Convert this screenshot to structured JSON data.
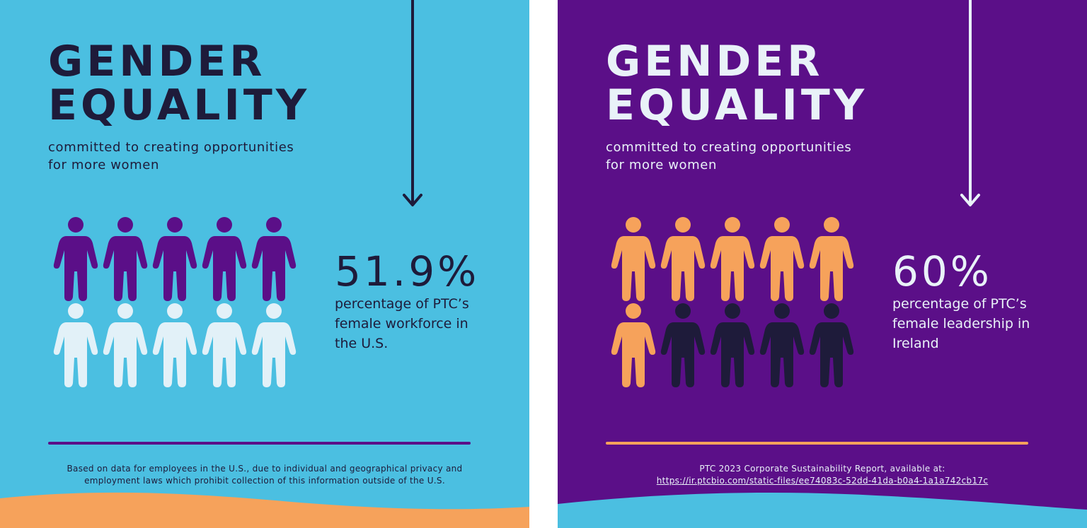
{
  "colors": {
    "sky_blue": "#4bbfe1",
    "purple": "#5b0f88",
    "orange": "#f6a25b",
    "navy": "#1e1b3a",
    "pale": "#e2f1f8"
  },
  "left_card": {
    "title_line1": "GENDER",
    "title_line2": "EQUALITY",
    "subtitle_line1": "committed to creating opportunities",
    "subtitle_line2": "for more women",
    "stat": "51.9%",
    "stat_desc_line1": "percentage of PTC’s",
    "stat_desc_line2": "female workforce in",
    "stat_desc_line3": "the U.S.",
    "footnote_line1": "Based on data for employees in the U.S., due to individual and geographical privacy and",
    "footnote_line2": "employment laws which prohibit collection of this information outside of the U.S.",
    "figure_value": 0.5,
    "figures_highlighted": 5,
    "figures_total": 10
  },
  "right_card": {
    "title_line1": "GENDER",
    "title_line2": "EQUALITY",
    "subtitle_line1": "committed to creating opportunities",
    "subtitle_line2": "for more women",
    "stat": "60%",
    "stat_desc_line1": "percentage of PTC’s",
    "stat_desc_line2": "female leadership in",
    "stat_desc_line3": "Ireland",
    "footnote_line1": "PTC 2023 Corporate Sustainability Report, available at:",
    "footnote_link": "https://ir.ptcbio.com/static-files/ee74083c-52dd-41da-b0a4-1a1a742cb17c",
    "figure_value": 0.6,
    "figures_highlighted": 6,
    "figures_total": 10
  }
}
